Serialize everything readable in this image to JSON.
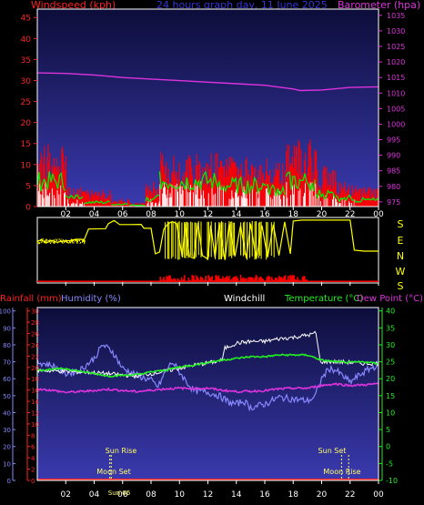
{
  "colors": {
    "background": "#000000",
    "panel_gradient_top": "#0d0d3a",
    "panel_gradient_bottom": "#3a3ab0",
    "wind_bar": "#ff0000",
    "wind_avg": "#00ee00",
    "wind_gust_white": "#ffffff",
    "barometer": "#dd33dd",
    "rain": "#ff2222",
    "humidity": "#8888ff",
    "windchill": "#ffffff",
    "temperature": "#22ee22",
    "dewpoint": "#dd33dd",
    "winddir": "#ffff00",
    "axis_left_top": "#ff2222",
    "axis_right_top": "#dd33dd",
    "axis_bottom_rain": "#ff2222",
    "axis_bottom_hum": "#8888ff",
    "axis_bottom_temp": "#22ee22"
  },
  "header": {
    "windspeed_label": "Windspeed (kph)",
    "title": "24 hours graph day, 11 June 2025",
    "barometer_label": "Barometer (hpa)"
  },
  "dir_labels": [
    "S",
    "E",
    "N",
    "W",
    "S"
  ],
  "bottom_header": {
    "rain_label": "Rainfall (mm)",
    "humidity_label": "Humidity (%)",
    "windchill_label": "Windchill",
    "temperature_label": "Temperature (°C)",
    "dewpoint_label": "Dew Point (°C)"
  },
  "annotations": {
    "sun_rise_label": "Sun Rise",
    "sun_set_label": "Sun Set",
    "moon_set_label": "Moon Set",
    "moon_rise_label": "Moon Rise",
    "sun_rise_time_label": "Sun 06"
  },
  "chart_data": [
    {
      "type": "bar",
      "name": "wind",
      "x_ticks": [
        "02",
        "04",
        "06",
        "08",
        "10",
        "12",
        "14",
        "16",
        "18",
        "20",
        "22",
        "00"
      ],
      "y_left_ticks": [
        0,
        5,
        10,
        15,
        20,
        25,
        30,
        35,
        40,
        45
      ],
      "y_left_range": [
        0,
        47
      ],
      "y_right_ticks": [
        975,
        980,
        985,
        990,
        995,
        1000,
        1005,
        1010,
        1015,
        1020,
        1025,
        1030,
        1035
      ],
      "y_right_range": [
        973.5,
        1037
      ],
      "x_range": [
        0,
        24
      ],
      "wind_segments": [
        {
          "x": [
            0.0,
            2.0
          ],
          "gust_max": 15,
          "avg": 6
        },
        {
          "x": [
            2.0,
            3.3
          ],
          "gust_max": 5,
          "avg": 2
        },
        {
          "x": [
            3.3,
            5.2
          ],
          "gust_max": 4,
          "avg": 1
        },
        {
          "x": [
            5.2,
            6.5
          ],
          "gust_max": 2,
          "avg": 0.5
        },
        {
          "x": [
            6.5,
            7.6
          ],
          "gust_max": 1,
          "avg": 0.3
        },
        {
          "x": [
            7.6,
            8.6
          ],
          "gust_max": 6,
          "avg": 2
        },
        {
          "x": [
            8.6,
            13.0
          ],
          "gust_max": 13,
          "avg": 6
        },
        {
          "x": [
            13.0,
            16.2
          ],
          "gust_max": 12,
          "avg": 5
        },
        {
          "x": [
            16.2,
            17.5
          ],
          "gust_max": 11,
          "avg": 4
        },
        {
          "x": [
            17.5,
            19.6
          ],
          "gust_max": 16,
          "avg": 6
        },
        {
          "x": [
            19.6,
            21.0
          ],
          "gust_max": 10,
          "avg": 3
        },
        {
          "x": [
            21.0,
            22.3
          ],
          "gust_max": 6,
          "avg": 2
        },
        {
          "x": [
            22.3,
            24.0
          ],
          "gust_max": 5,
          "avg": 1.5
        }
      ],
      "barometer": {
        "x": [
          0,
          2,
          4,
          6,
          8,
          10,
          12,
          14,
          16,
          18,
          18.5,
          20,
          22,
          24
        ],
        "y": [
          1016.5,
          1016.3,
          1015.8,
          1015,
          1014.5,
          1014,
          1013.5,
          1013,
          1012.5,
          1011.3,
          1010.8,
          1011,
          1011.8,
          1012
        ]
      }
    },
    {
      "type": "line",
      "name": "wind_direction",
      "direction_scale": [
        "S",
        "E",
        "N",
        "W",
        "S"
      ],
      "direction_range_deg": [
        0,
        360
      ],
      "series": [
        {
          "name": "direction",
          "points": [
            [
              0.0,
              130
            ],
            [
              0.3,
              120
            ],
            [
              0.6,
              140
            ],
            [
              1.0,
              125
            ],
            [
              1.4,
              135
            ],
            [
              1.8,
              128
            ],
            [
              2.3,
              125
            ],
            [
              2.8,
              118
            ],
            [
              3.3,
              120
            ],
            [
              3.6,
              60
            ],
            [
              4.8,
              58
            ],
            [
              5.0,
              30
            ],
            [
              5.4,
              12
            ],
            [
              5.8,
              35
            ],
            [
              6.5,
              35
            ],
            [
              7.3,
              34
            ],
            [
              7.5,
              56
            ],
            [
              8.0,
              56
            ],
            [
              8.3,
              200
            ],
            [
              8.6,
              190
            ],
            [
              8.9,
              60
            ],
            [
              9.2,
              30
            ],
            [
              9.5,
              18
            ],
            [
              9.8,
              30
            ],
            [
              10.2,
              220
            ],
            [
              10.4,
              30
            ],
            [
              10.7,
              215
            ],
            [
              11.0,
              225
            ],
            [
              11.3,
              25
            ],
            [
              11.6,
              210
            ],
            [
              12.0,
              230
            ],
            [
              12.2,
              40
            ],
            [
              12.5,
              220
            ],
            [
              12.8,
              35
            ],
            [
              13.2,
              235
            ],
            [
              13.5,
              30
            ],
            [
              13.9,
              215
            ],
            [
              14.3,
              40
            ],
            [
              14.7,
              225
            ],
            [
              15.0,
              30
            ],
            [
              15.4,
              230
            ],
            [
              15.8,
              40
            ],
            [
              16.2,
              220
            ],
            [
              16.6,
              35
            ],
            [
              17.0,
              210
            ],
            [
              17.4,
              20
            ],
            [
              17.8,
              200
            ],
            [
              18.0,
              15
            ],
            [
              18.6,
              10
            ],
            [
              19.5,
              10
            ],
            [
              21.0,
              10
            ],
            [
              22.0,
              10
            ],
            [
              22.3,
              180
            ],
            [
              23.0,
              185
            ],
            [
              23.6,
              185
            ],
            [
              24.0,
              185
            ]
          ]
        }
      ]
    },
    {
      "type": "line",
      "name": "temp_hum_rain",
      "x_ticks": [
        "02",
        "04",
        "06",
        "08",
        "10",
        "12",
        "14",
        "16",
        "18",
        "20",
        "22",
        "00"
      ],
      "y_rain_ticks": [
        0,
        2,
        4,
        6,
        8,
        10,
        12,
        14,
        16,
        18,
        20,
        22,
        24,
        26,
        28,
        30
      ],
      "y_rain_range": [
        0,
        30.6
      ],
      "y_hum_ticks": [
        0,
        10,
        20,
        30,
        40,
        50,
        60,
        70,
        80,
        90,
        100
      ],
      "y_hum_range": [
        0,
        102
      ],
      "y_temp_ticks": [
        -10,
        -5,
        0,
        5,
        10,
        15,
        20,
        25,
        30,
        35,
        40
      ],
      "y_temp_range": [
        -10,
        41
      ],
      "x_range": [
        0,
        24
      ],
      "series": [
        {
          "name": "Humidity (%)",
          "points": [
            [
              0,
              70
            ],
            [
              1,
              68
            ],
            [
              2,
              63
            ],
            [
              3,
              65
            ],
            [
              4,
              72
            ],
            [
              4.6,
              80
            ],
            [
              5.3,
              76
            ],
            [
              6.0,
              66
            ],
            [
              7.0,
              62
            ],
            [
              8.0,
              59
            ],
            [
              8.5,
              55
            ],
            [
              9.0,
              64
            ],
            [
              9.5,
              70
            ],
            [
              10.0,
              64
            ],
            [
              10.5,
              58
            ],
            [
              11.0,
              53
            ],
            [
              12.0,
              52
            ],
            [
              12.8,
              50
            ],
            [
              13.5,
              46
            ],
            [
              14.0,
              45
            ],
            [
              14.5,
              47
            ],
            [
              15.0,
              43
            ],
            [
              16.0,
              45
            ],
            [
              17.0,
              49
            ],
            [
              18.0,
              48
            ],
            [
              19.0,
              47
            ],
            [
              19.5,
              49
            ],
            [
              20.0,
              60
            ],
            [
              20.5,
              66
            ],
            [
              21.0,
              65
            ],
            [
              22.0,
              58
            ],
            [
              22.8,
              63
            ],
            [
              23.4,
              66
            ],
            [
              24.0,
              68
            ]
          ]
        },
        {
          "name": "Windchill",
          "points": [
            [
              0,
              22.5
            ],
            [
              4,
              21.8
            ],
            [
              7,
              20.8
            ],
            [
              9,
              22.2
            ],
            [
              11,
              24
            ],
            [
              12.5,
              25
            ],
            [
              13,
              25.5
            ],
            [
              13.2,
              29
            ],
            [
              14,
              30.5
            ],
            [
              15,
              31
            ],
            [
              16,
              31
            ],
            [
              17,
              31.8
            ],
            [
              18,
              32.2
            ],
            [
              19.2,
              33
            ],
            [
              19.6,
              33.5
            ],
            [
              19.9,
              25
            ],
            [
              21,
              25
            ],
            [
              22,
              24.8
            ],
            [
              23,
              24.5
            ],
            [
              24,
              24.5
            ]
          ]
        },
        {
          "name": "Temperature (°C)",
          "points": [
            [
              0,
              22.5
            ],
            [
              1,
              22.8
            ],
            [
              2,
              23
            ],
            [
              3,
              22.2
            ],
            [
              4,
              21.5
            ],
            [
              5,
              20.8
            ],
            [
              6,
              21
            ],
            [
              7,
              21.2
            ],
            [
              8,
              22
            ],
            [
              9,
              22.5
            ],
            [
              10,
              23.5
            ],
            [
              11,
              24
            ],
            [
              12,
              24.8
            ],
            [
              13,
              25.5
            ],
            [
              14,
              26
            ],
            [
              15,
              26.5
            ],
            [
              16,
              26.5
            ],
            [
              17,
              27
            ],
            [
              18,
              27
            ],
            [
              19,
              27
            ],
            [
              20,
              25.5
            ],
            [
              21,
              25
            ],
            [
              22,
              24.8
            ],
            [
              23,
              25
            ],
            [
              24,
              24.5
            ]
          ]
        },
        {
          "name": "Dew Point (°C)",
          "points": [
            [
              0,
              17
            ],
            [
              1,
              16.6
            ],
            [
              2,
              16
            ],
            [
              3,
              16.2
            ],
            [
              4,
              16.5
            ],
            [
              5,
              16.9
            ],
            [
              6,
              16.5
            ],
            [
              7,
              16.2
            ],
            [
              8,
              16.6
            ],
            [
              9,
              17
            ],
            [
              10,
              17.2
            ],
            [
              11,
              17.1
            ],
            [
              12,
              17.2
            ],
            [
              13,
              16.6
            ],
            [
              14,
              16.2
            ],
            [
              15,
              16.3
            ],
            [
              16,
              16.5
            ],
            [
              17,
              17
            ],
            [
              18,
              17.2
            ],
            [
              19,
              17.2
            ],
            [
              20,
              18
            ],
            [
              21,
              18.5
            ],
            [
              22,
              18
            ],
            [
              23,
              18.2
            ],
            [
              24,
              18.5
            ]
          ]
        },
        {
          "name": "Rainfall (mm)",
          "points": [
            [
              0,
              0
            ],
            [
              24,
              0
            ]
          ]
        }
      ],
      "events": [
        {
          "label": "Sun Rise",
          "x": 5.2
        },
        {
          "label": "Moon Set",
          "x": 5.1
        },
        {
          "label": "Sun Set",
          "x": 21.4
        },
        {
          "label": "Moon Rise",
          "x": 21.9
        }
      ]
    }
  ]
}
